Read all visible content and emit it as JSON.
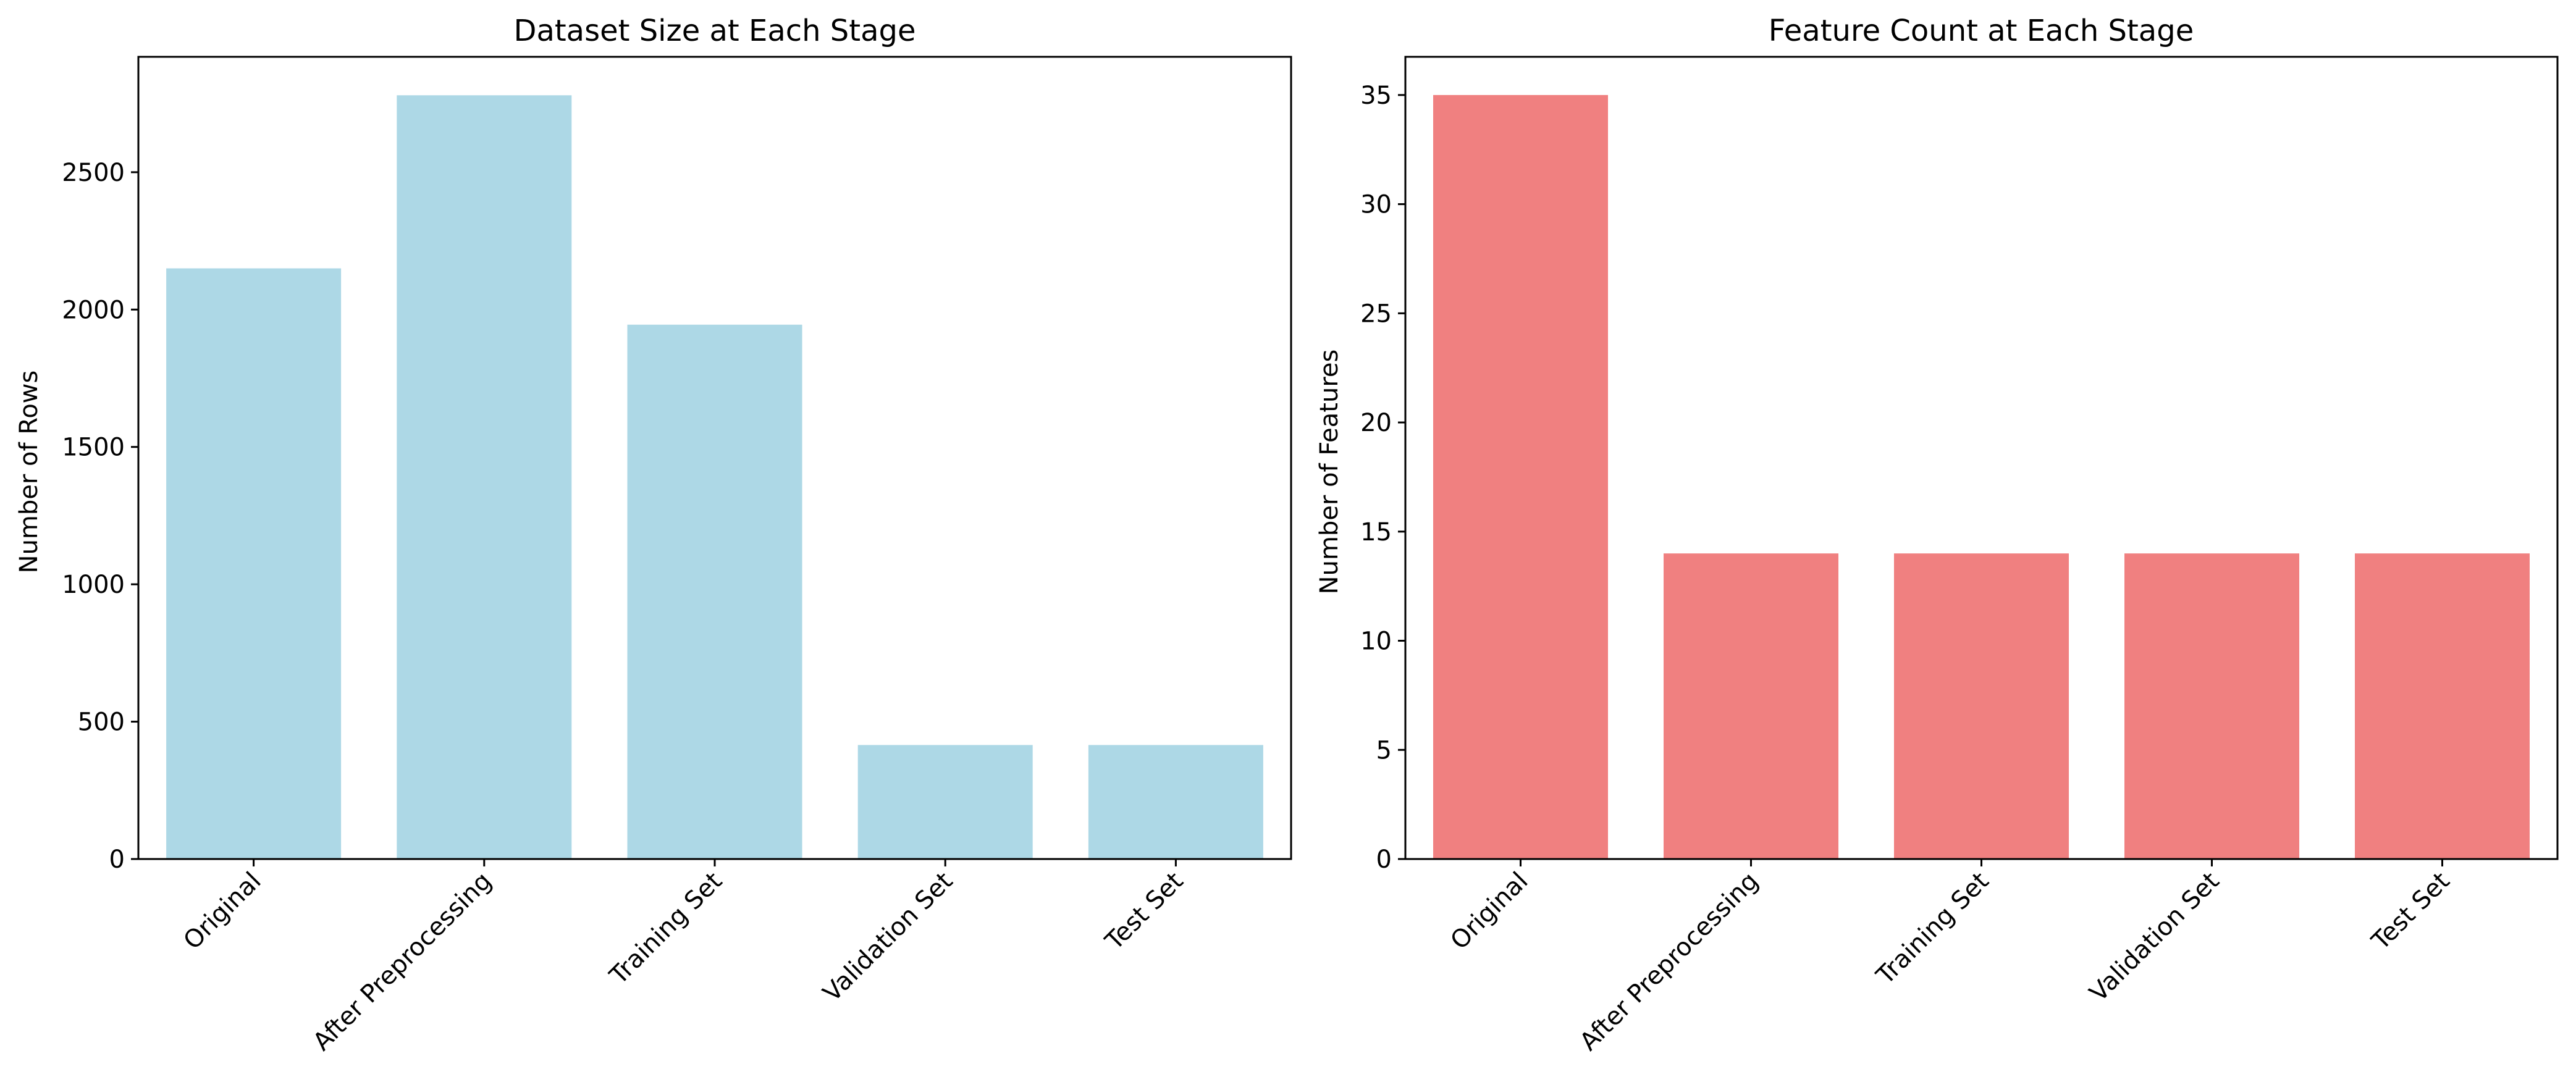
{
  "chart_data": [
    {
      "type": "bar",
      "title": "Dataset Size at Each Stage",
      "xlabel": "",
      "ylabel": "Number of Rows",
      "categories": [
        "Original",
        "After Preprocessing",
        "Training Set",
        "Validation Set",
        "Test Set"
      ],
      "values": [
        2150,
        2780,
        1945,
        415,
        415
      ],
      "ylim": [
        0,
        2920
      ],
      "yticks": [
        0,
        500,
        1000,
        1500,
        2000,
        2500
      ],
      "bar_color": "#add8e6",
      "grid": false,
      "legend": "none"
    },
    {
      "type": "bar",
      "title": "Feature Count at Each Stage",
      "xlabel": "",
      "ylabel": "Number of Features",
      "categories": [
        "Original",
        "After Preprocessing",
        "Training Set",
        "Validation Set",
        "Test Set"
      ],
      "values": [
        35,
        14,
        14,
        14,
        14
      ],
      "ylim": [
        0,
        36.75
      ],
      "yticks": [
        0,
        5,
        10,
        15,
        20,
        25,
        30,
        35
      ],
      "bar_color": "#f08080",
      "grid": false,
      "legend": "none"
    }
  ]
}
